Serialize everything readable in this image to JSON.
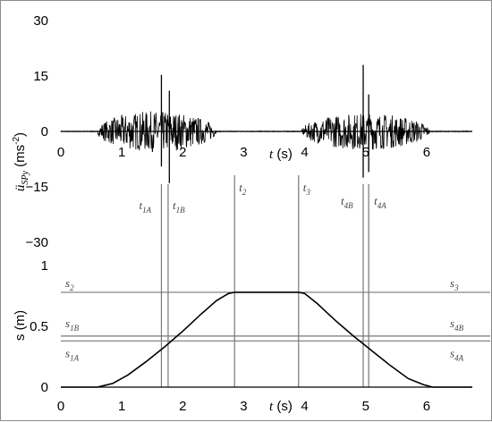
{
  "chart_data": [
    {
      "type": "line",
      "name_key": "acceleration",
      "ylabel_var": "ü",
      "ylabel_sub": "SPy",
      "ylabel_unit": "(ms",
      "ylabel_exp": "-2",
      "ylabel_close": ")",
      "xlabel_var": "t",
      "xlabel_unit": "(s)",
      "xlim": [
        0,
        6.75
      ],
      "ylim": [
        -30,
        30
      ],
      "x_ticks": [
        "0",
        "1",
        "2",
        "3",
        "4",
        "5",
        "6"
      ],
      "y_ticks": [
        {
          "value": 30,
          "label": "30"
        },
        {
          "value": 15,
          "label": "15"
        },
        {
          "value": 0,
          "label": "0"
        },
        {
          "value": -15,
          "label": "−15"
        },
        {
          "value": -30,
          "label": "−30"
        }
      ],
      "vibration_bursts": [
        {
          "start": 0.6,
          "end": 2.55,
          "amplitude": 5.5
        },
        {
          "start": 3.95,
          "end": 6.05,
          "amplitude": 5.0
        }
      ],
      "spikes": [
        {
          "x": 1.65,
          "max": 15.3,
          "min": -9.5
        },
        {
          "x": 1.78,
          "max": 11.0,
          "min": -14.0
        },
        {
          "x": 4.96,
          "max": 18.0,
          "min": -12.5
        },
        {
          "x": 5.05,
          "max": 10.0,
          "min": -11.0
        }
      ],
      "event_lines": [
        {
          "key": "t1A",
          "x": 1.65,
          "label": "t",
          "sub": "1A"
        },
        {
          "key": "t1B",
          "x": 1.76,
          "label": "t",
          "sub": "1B"
        },
        {
          "key": "t2",
          "x": 2.85,
          "label": "t",
          "sub": "2"
        },
        {
          "key": "t3",
          "x": 3.9,
          "label": "t",
          "sub": "3"
        },
        {
          "key": "t4B",
          "x": 4.96,
          "label": "t",
          "sub": "4B"
        },
        {
          "key": "t4A",
          "x": 5.05,
          "label": "t",
          "sub": "4A"
        }
      ]
    },
    {
      "type": "line",
      "name_key": "displacement",
      "ylabel": "s (m)",
      "xlabel_var": "t",
      "xlabel_unit": "(s)",
      "xlim": [
        0,
        6.75
      ],
      "ylim": [
        0,
        1
      ],
      "x_ticks": [
        "0",
        "1",
        "2",
        "3",
        "4",
        "5",
        "6"
      ],
      "y_ticks": [
        {
          "value": 1,
          "label": "1"
        },
        {
          "value": 0.5,
          "label": "0.5"
        },
        {
          "value": 0,
          "label": "0"
        }
      ],
      "x": [
        0,
        0.6,
        0.85,
        1.1,
        1.4,
        1.7,
        2.0,
        2.3,
        2.55,
        2.75,
        2.85,
        3.9,
        4.0,
        4.2,
        4.5,
        4.8,
        5.1,
        5.4,
        5.7,
        5.95,
        6.1,
        6.3,
        6.75
      ],
      "y": [
        0,
        0,
        0.03,
        0.1,
        0.21,
        0.33,
        0.46,
        0.6,
        0.71,
        0.77,
        0.78,
        0.78,
        0.77,
        0.69,
        0.55,
        0.42,
        0.3,
        0.18,
        0.07,
        0.02,
        0.0,
        0,
        0
      ],
      "reference_lines": [
        {
          "key": "s2",
          "value": 0.78,
          "left": "s",
          "left_sub": "2",
          "right": "s",
          "right_sub": "3"
        },
        {
          "key": "s1B",
          "value": 0.42,
          "left": "s",
          "left_sub": "1B",
          "right": "s",
          "right_sub": "4B"
        },
        {
          "key": "s1A",
          "value": 0.38,
          "left": "s",
          "left_sub": "1A",
          "right": "s",
          "right_sub": "4A"
        }
      ]
    }
  ]
}
